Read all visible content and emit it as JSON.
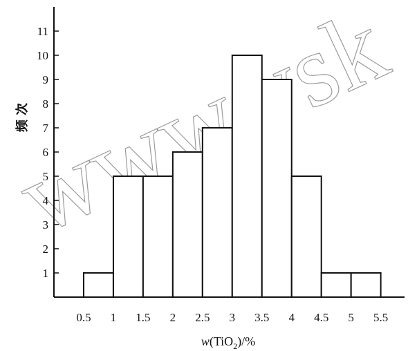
{
  "chart_data": {
    "type": "bar",
    "title": "",
    "ylabel": "频 次",
    "xlabel": {
      "prefix": "w",
      "open": "(TiO",
      "sub": "2",
      "close": ")/%"
    },
    "bins": [
      {
        "x0": 0.5,
        "x1": 1.0,
        "count": 1
      },
      {
        "x0": 1.0,
        "x1": 1.5,
        "count": 5
      },
      {
        "x0": 1.5,
        "x1": 2.0,
        "count": 5
      },
      {
        "x0": 2.0,
        "x1": 2.5,
        "count": 6
      },
      {
        "x0": 2.5,
        "x1": 3.0,
        "count": 7
      },
      {
        "x0": 3.0,
        "x1": 3.5,
        "count": 10
      },
      {
        "x0": 3.5,
        "x1": 4.0,
        "count": 9
      },
      {
        "x0": 4.0,
        "x1": 4.5,
        "count": 5
      },
      {
        "x0": 4.5,
        "x1": 5.0,
        "count": 1
      },
      {
        "x0": 5.0,
        "x1": 5.5,
        "count": 1
      }
    ],
    "xticks": [
      "0.5",
      "1",
      "1.5",
      "2",
      "2.5",
      "3",
      "3.5",
      "4",
      "4.5",
      "5",
      "5.5"
    ],
    "xtick_values": [
      0.5,
      1,
      1.5,
      2,
      2.5,
      3,
      3.5,
      4,
      4.5,
      5,
      5.5
    ],
    "yticks": [
      "1",
      "2",
      "3",
      "4",
      "5",
      "6",
      "7",
      "8",
      "9",
      "10",
      "11"
    ],
    "ytick_values": [
      1,
      2,
      3,
      4,
      5,
      6,
      7,
      8,
      9,
      10,
      11
    ],
    "xlim": [
      0,
      5.9
    ],
    "ylim": [
      0,
      12
    ],
    "grid": false,
    "legend": "none"
  },
  "watermark": "www.ysk"
}
